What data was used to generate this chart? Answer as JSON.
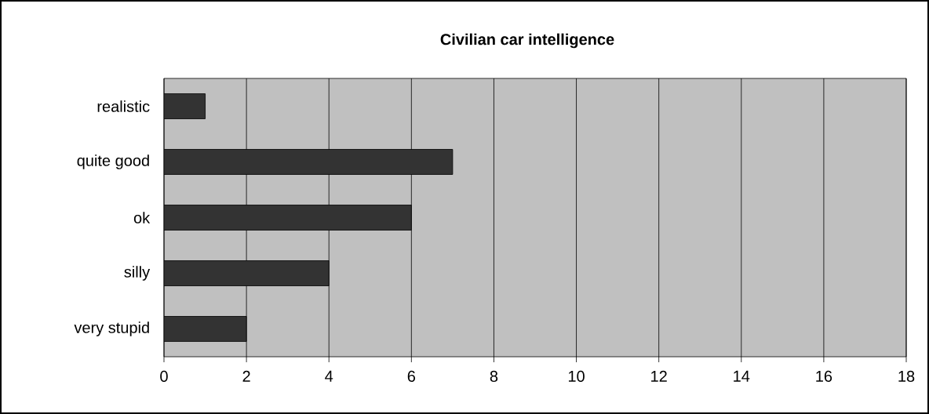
{
  "chart_data": {
    "type": "bar",
    "orientation": "horizontal",
    "title": "Civilian car intelligence",
    "categories": [
      "realistic",
      "quite good",
      "ok",
      "silly",
      "very stupid"
    ],
    "values": [
      1,
      7,
      6,
      4,
      2
    ],
    "color": "#333333",
    "xlim": [
      0,
      18
    ],
    "xticks": [
      0,
      2,
      4,
      6,
      8,
      10,
      12,
      14,
      16,
      18
    ],
    "grid": "x"
  }
}
